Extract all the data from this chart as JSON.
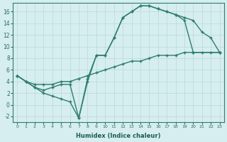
{
  "xlabel": "Humidex (Indice chaleur)",
  "bg_color": "#d6eef0",
  "grid_color": "#b8d8d8",
  "line_color": "#2e7d6e",
  "xlim": [
    -0.5,
    23.5
  ],
  "ylim": [
    -3,
    17.5
  ],
  "xticks": [
    0,
    1,
    2,
    3,
    4,
    5,
    6,
    7,
    8,
    9,
    10,
    11,
    12,
    13,
    14,
    15,
    16,
    17,
    18,
    19,
    20,
    21,
    22,
    23
  ],
  "yticks": [
    -2,
    0,
    2,
    4,
    6,
    8,
    10,
    12,
    14,
    16
  ],
  "line1_x": [
    0,
    1,
    2,
    3,
    4,
    5,
    6,
    7,
    8,
    9,
    10,
    11,
    12,
    13,
    14,
    15,
    16,
    17,
    18,
    19,
    20,
    23
  ],
  "line1_y": [
    5,
    4,
    3,
    2,
    1.5,
    1,
    0.5,
    -2.3,
    4,
    8.5,
    8.5,
    11.5,
    15,
    16,
    17,
    17,
    16.5,
    16,
    15.5,
    14.5,
    9,
    9
  ],
  "line2_x": [
    0,
    1,
    2,
    3,
    4,
    5,
    6,
    7,
    8,
    9,
    10,
    11,
    12,
    13,
    14,
    15,
    16,
    17,
    18,
    19,
    20,
    21,
    22,
    23
  ],
  "line2_y": [
    5,
    4,
    3,
    2.5,
    3,
    3.5,
    3.5,
    -2.3,
    4.5,
    8.5,
    8.5,
    11.5,
    15,
    16,
    17,
    17,
    16.5,
    16,
    15.5,
    15,
    14.5,
    12.5,
    11.5,
    9
  ],
  "line3_x": [
    0,
    1,
    2,
    3,
    4,
    5,
    6,
    7,
    8,
    9,
    10,
    11,
    12,
    13,
    14,
    15,
    16,
    17,
    18,
    19,
    20,
    21,
    22,
    23
  ],
  "line3_y": [
    5,
    4,
    3.5,
    3.5,
    3.5,
    4,
    4,
    4.5,
    5,
    5.5,
    6,
    6.5,
    7,
    7.5,
    7.5,
    8,
    8.5,
    8.5,
    8.5,
    9,
    9,
    9,
    9,
    9
  ]
}
